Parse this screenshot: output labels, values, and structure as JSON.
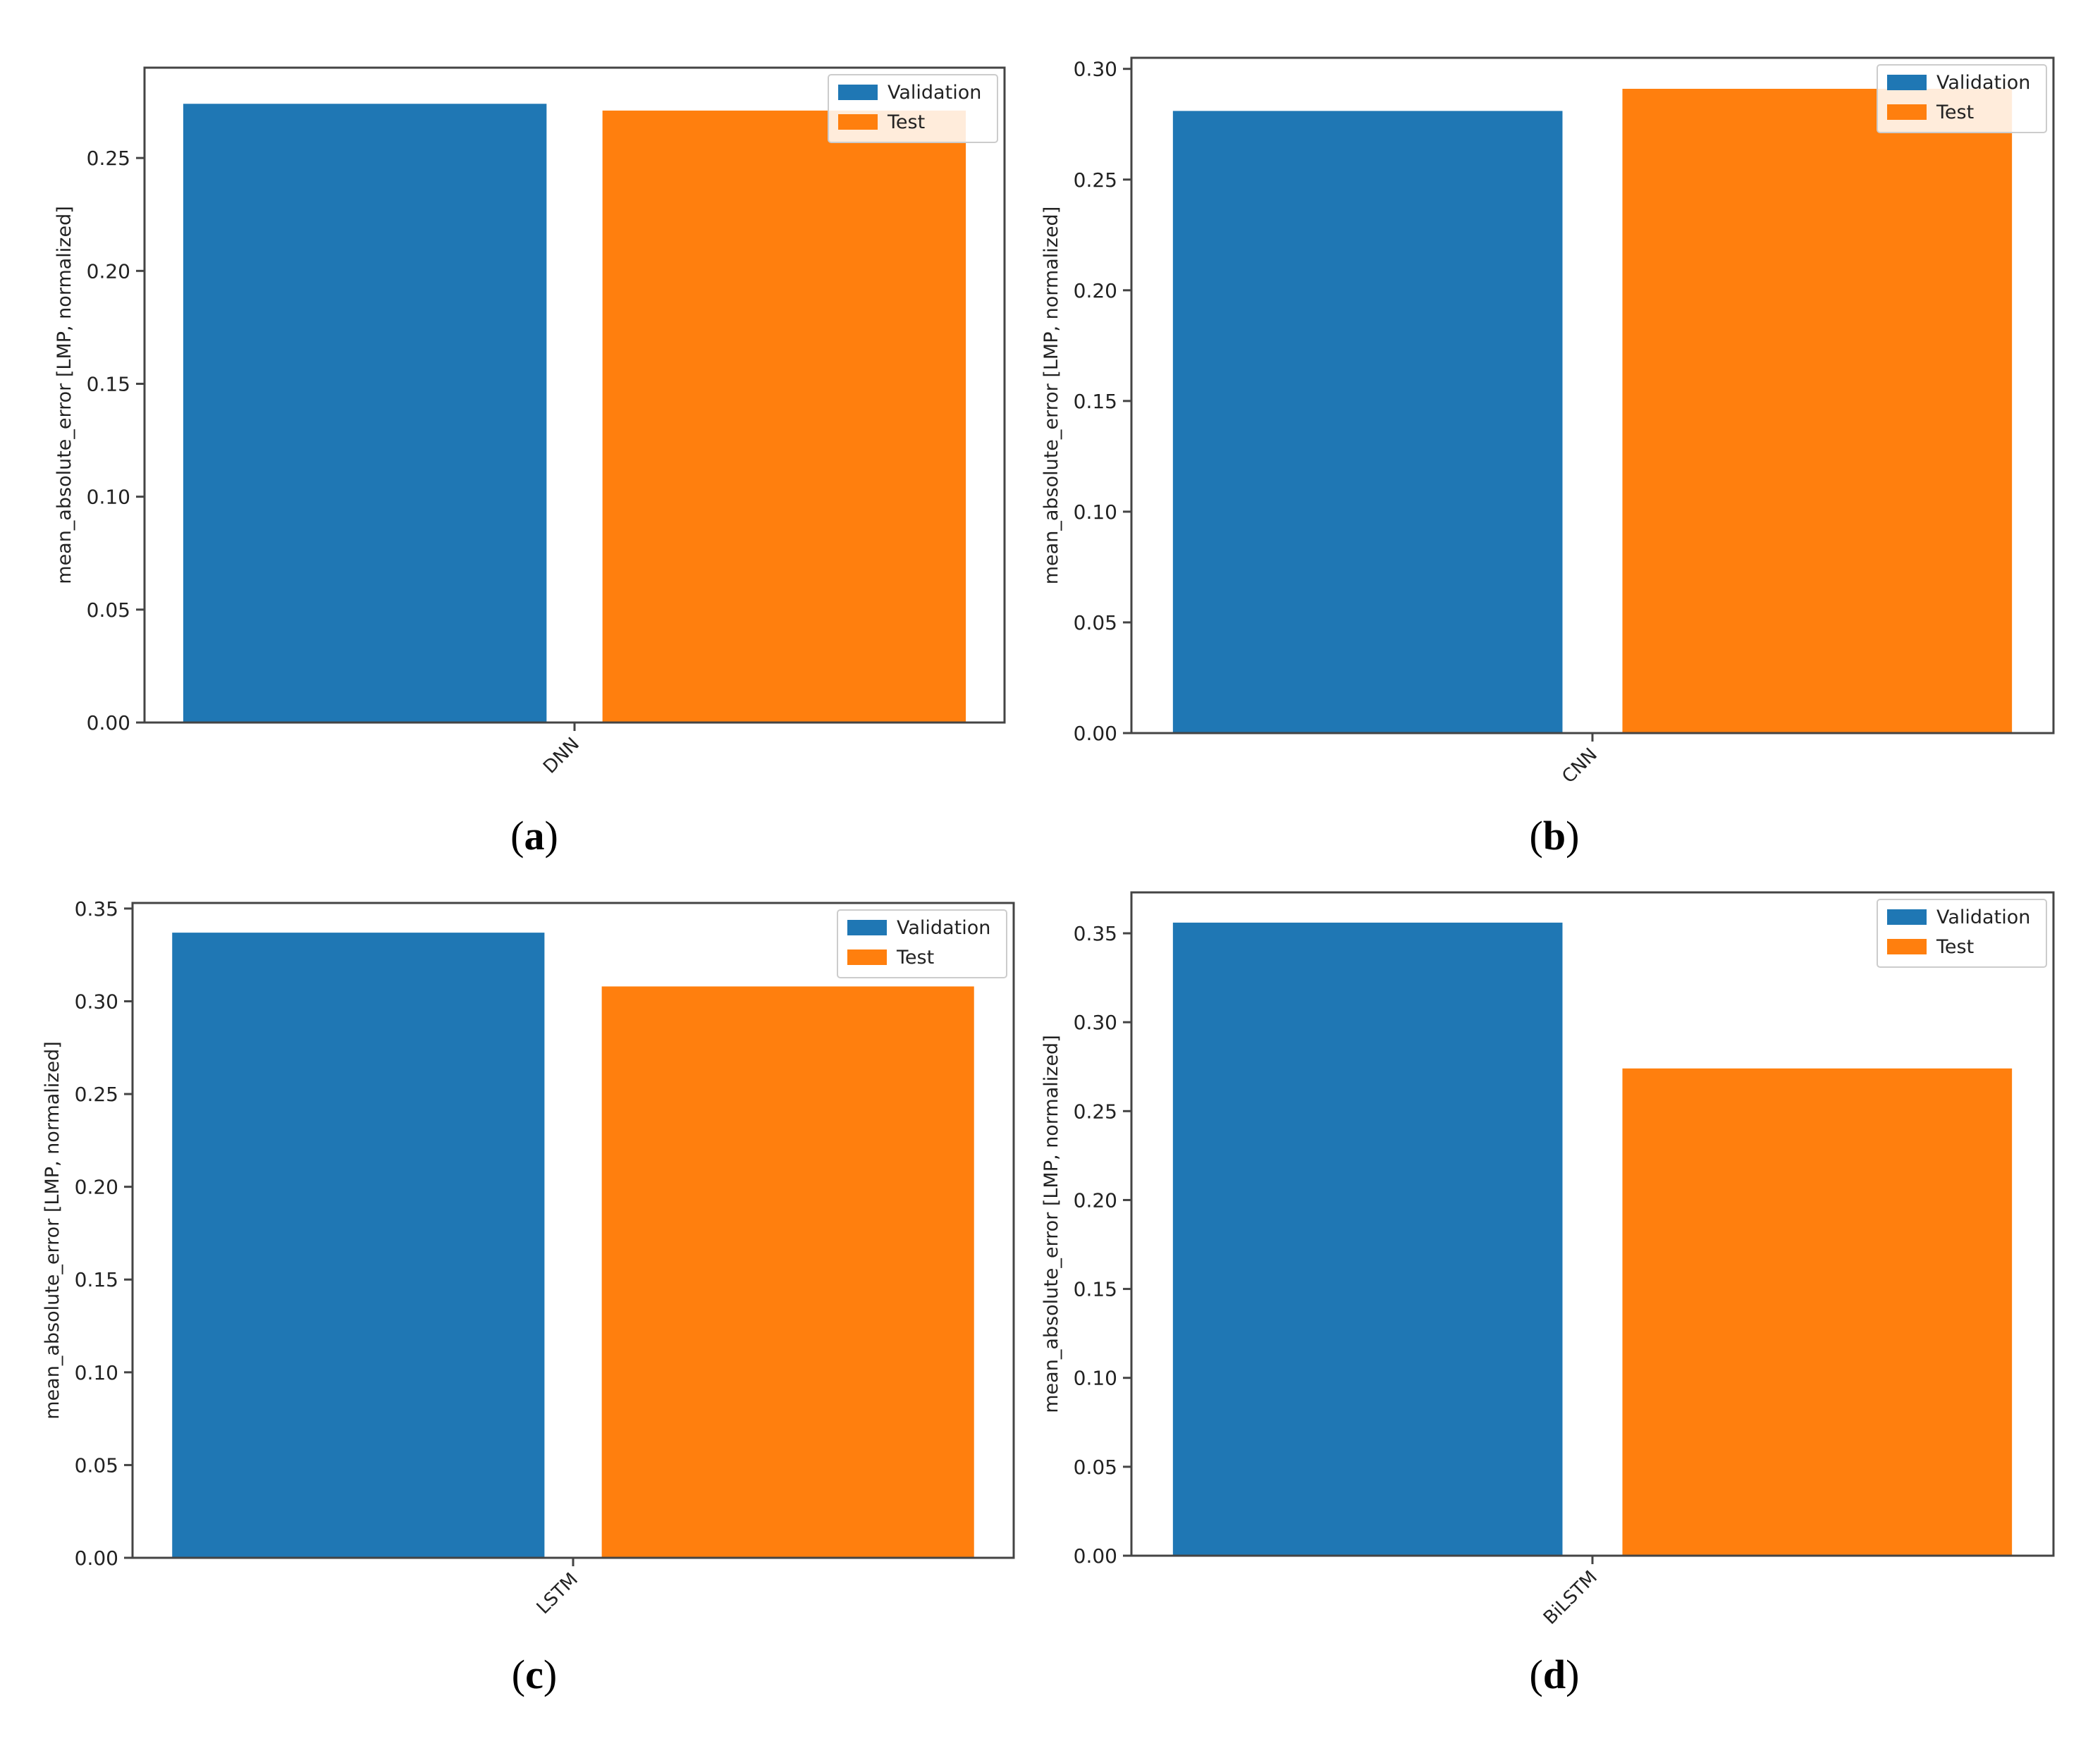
{
  "figure": {
    "panels": [
      {
        "letter": "a"
      },
      {
        "letter": "b"
      },
      {
        "letter": "c"
      },
      {
        "letter": "d"
      }
    ]
  },
  "chart_data": [
    {
      "type": "bar",
      "categories": [
        "DNN"
      ],
      "series": [
        {
          "name": "Validation",
          "color": "#1f77b4",
          "values": [
            0.274
          ]
        },
        {
          "name": "Test",
          "color": "#ff7f0e",
          "values": [
            0.271
          ]
        }
      ],
      "ylabel": "mean_absolute_error [LMP, normalized]",
      "xlabel": "",
      "ylim": [
        0,
        0.29
      ],
      "yticks": [
        "0.00",
        "0.05",
        "0.10",
        "0.15",
        "0.20",
        "0.25"
      ],
      "grid": false,
      "legend": "top-right"
    },
    {
      "type": "bar",
      "categories": [
        "CNN"
      ],
      "series": [
        {
          "name": "Validation",
          "color": "#1f77b4",
          "values": [
            0.281
          ]
        },
        {
          "name": "Test",
          "color": "#ff7f0e",
          "values": [
            0.291
          ]
        }
      ],
      "ylabel": "mean_absolute_error [LMP, normalized]",
      "xlabel": "",
      "ylim": [
        0,
        0.305
      ],
      "yticks": [
        "0.00",
        "0.05",
        "0.10",
        "0.15",
        "0.20",
        "0.25",
        "0.30"
      ],
      "grid": false,
      "legend": "top-right"
    },
    {
      "type": "bar",
      "categories": [
        "LSTM"
      ],
      "series": [
        {
          "name": "Validation",
          "color": "#1f77b4",
          "values": [
            0.337
          ]
        },
        {
          "name": "Test",
          "color": "#ff7f0e",
          "values": [
            0.308
          ]
        }
      ],
      "ylabel": "mean_absolute_error [LMP, normalized]",
      "xlabel": "",
      "ylim": [
        0,
        0.353
      ],
      "yticks": [
        "0.00",
        "0.05",
        "0.10",
        "0.15",
        "0.20",
        "0.25",
        "0.30",
        "0.35"
      ],
      "grid": false,
      "legend": "top-right"
    },
    {
      "type": "bar",
      "categories": [
        "BiLSTM"
      ],
      "series": [
        {
          "name": "Validation",
          "color": "#1f77b4",
          "values": [
            0.356
          ]
        },
        {
          "name": "Test",
          "color": "#ff7f0e",
          "values": [
            0.274
          ]
        }
      ],
      "ylabel": "mean_absolute_error [LMP, normalized]",
      "xlabel": "",
      "ylim": [
        0,
        0.373
      ],
      "yticks": [
        "0.00",
        "0.05",
        "0.10",
        "0.15",
        "0.20",
        "0.25",
        "0.30",
        "0.35"
      ],
      "grid": false,
      "legend": "top-right"
    }
  ]
}
